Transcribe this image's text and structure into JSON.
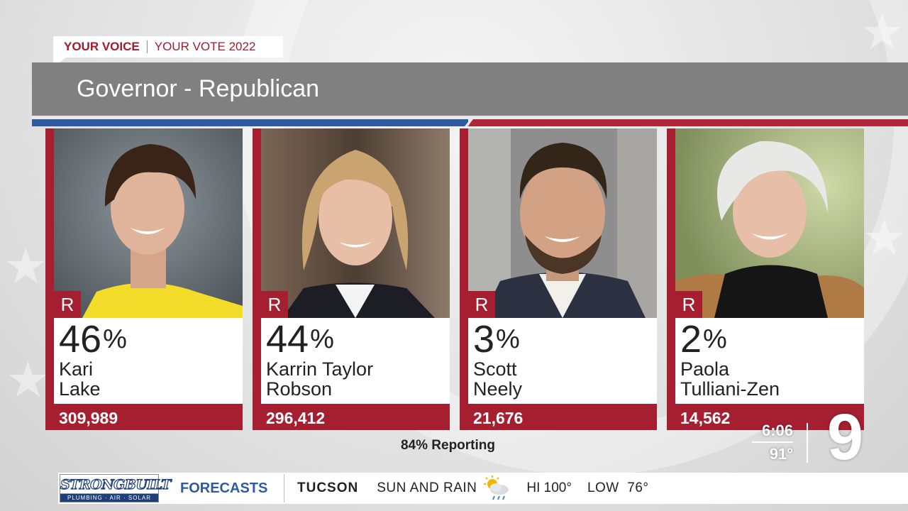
{
  "segment": {
    "brand": "YOUR VOICE",
    "subtitle": "YOUR VOTE 2022"
  },
  "race_title": "Governor - Republican",
  "candidates": [
    {
      "party": "R",
      "percent": "46",
      "pct_sign": "%",
      "first": "Kari",
      "last": "Lake",
      "votes": "309,989"
    },
    {
      "party": "R",
      "percent": "44",
      "pct_sign": "%",
      "first": "Karrin Taylor",
      "last": "Robson",
      "votes": "296,412"
    },
    {
      "party": "R",
      "percent": "3",
      "pct_sign": "%",
      "first": "Scott",
      "last": "Neely",
      "votes": "21,676"
    },
    {
      "party": "R",
      "percent": "2",
      "pct_sign": "%",
      "first": "Paola",
      "last": "Tulliani-Zen",
      "votes": "14,562"
    }
  ],
  "reporting": "84% Reporting",
  "station": {
    "time": "6:06",
    "temp": "91°",
    "logo": "9"
  },
  "ticker": {
    "sponsor_name": "STRONGBUILT",
    "sponsor_tagline": "PLUMBING · AIR · SOLAR",
    "section": "FORECASTS",
    "city": "TUCSON",
    "condition": "SUN AND RAIN",
    "condition_icon": "sun-rain-icon",
    "high": "HI 100°",
    "low": "LOW  76°"
  },
  "colors": {
    "party_red": "#a51f31",
    "title_gray": "#808080",
    "stripe_blue": "#2f5aa2",
    "forecast_blue": "#2f5aa2"
  }
}
